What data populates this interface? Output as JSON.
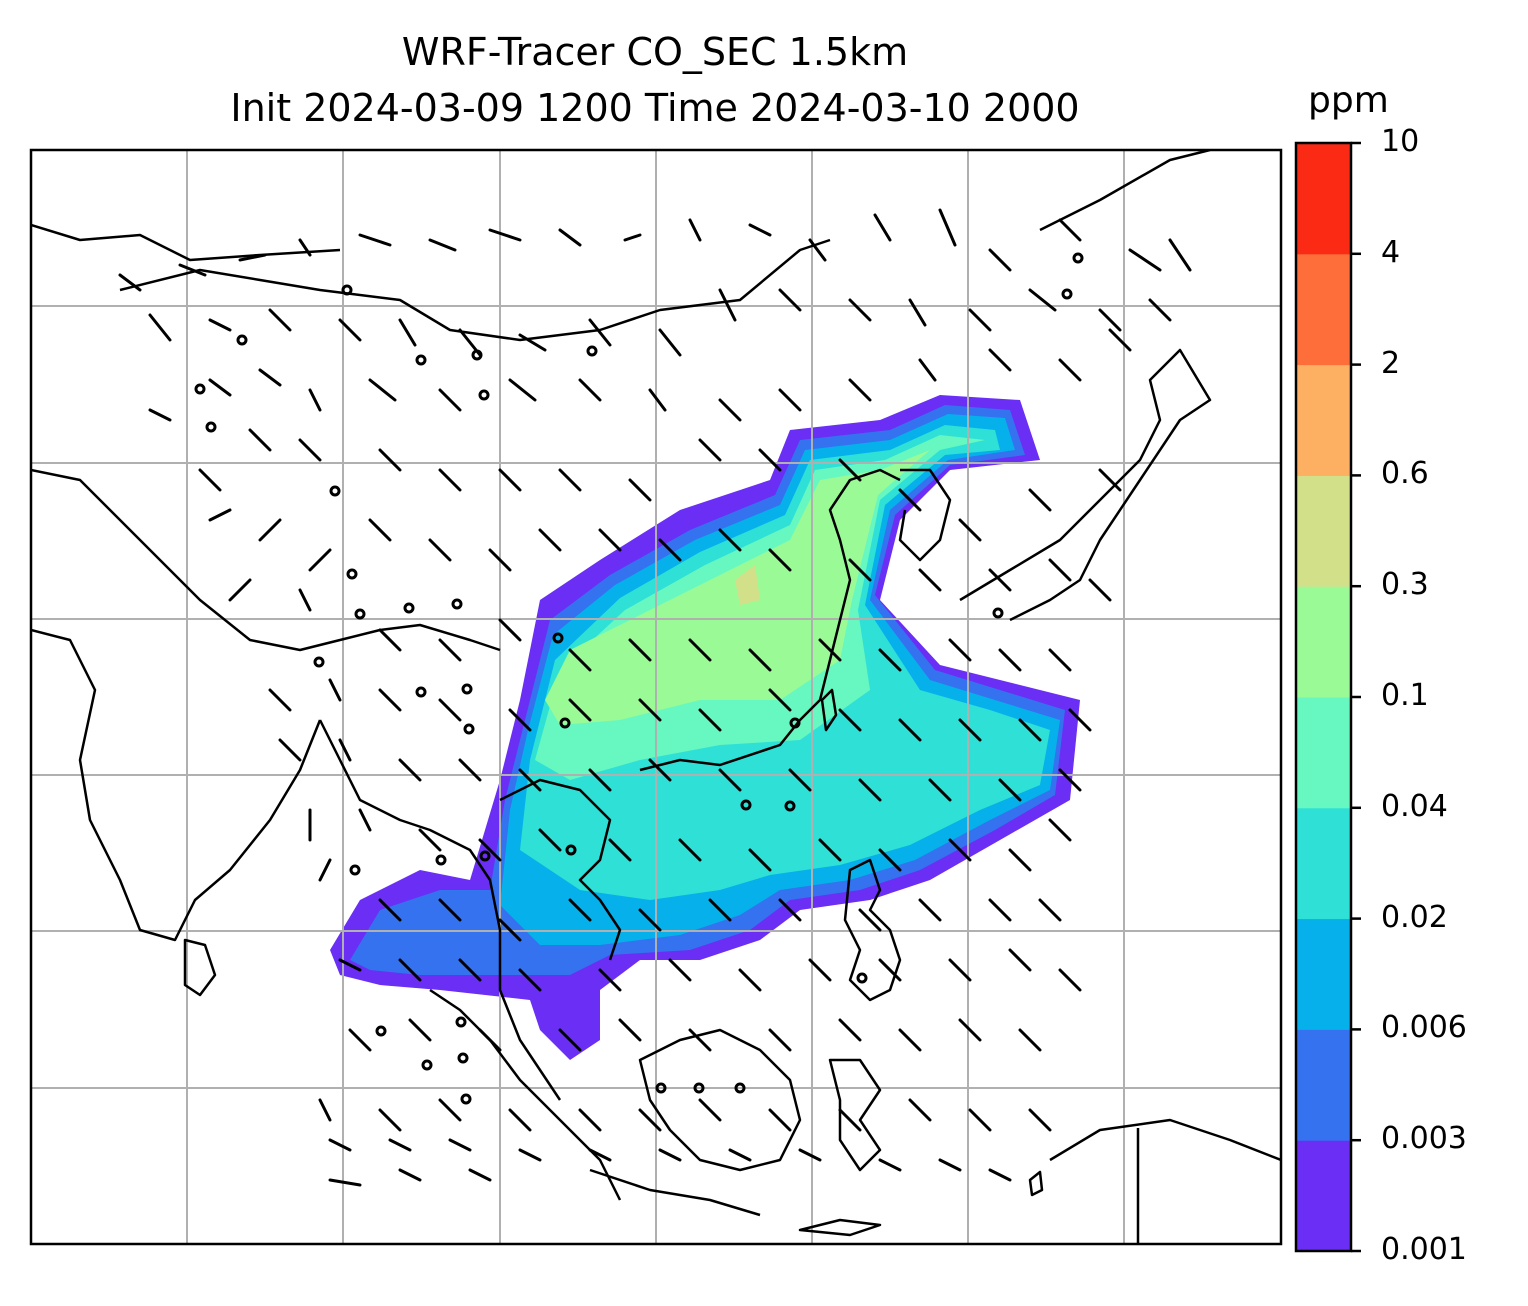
{
  "title": {
    "line1": "WRF-Tracer CO_SEC 1.5km",
    "line2": "Init 2024-03-09 1200 Time 2024-03-10 2000"
  },
  "colorbar": {
    "unit": "ppm",
    "ticks": [
      "0.001",
      "0.003",
      "0.006",
      "0.02",
      "0.04",
      "0.1",
      "0.3",
      "0.6",
      "2",
      "4",
      "10"
    ],
    "colors": [
      "#6a2ef5",
      "#3472f0",
      "#06b0ea",
      "#2ee0d6",
      "#66f8c0",
      "#9afa96",
      "#d2e08a",
      "#fdb061",
      "#fd6e3a",
      "#fb2a15"
    ]
  },
  "map": {
    "land_outline_color": "#000000",
    "gridline_color": "#b0b0b0",
    "wind_barb_color": "#000000"
  }
}
